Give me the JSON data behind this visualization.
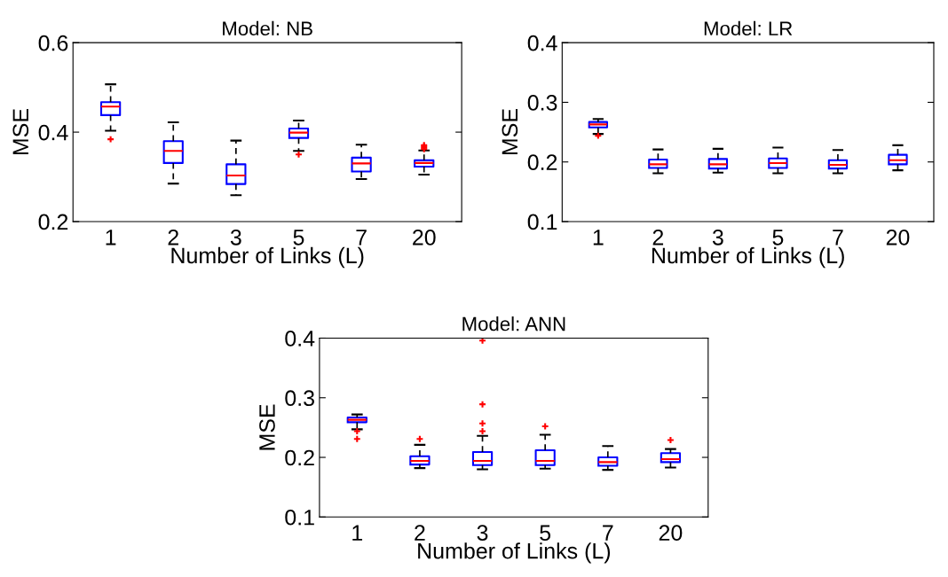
{
  "chart_data": [
    {
      "type": "box",
      "title": "Model: NB",
      "xlabel": "Number of Links (L)",
      "ylabel": "MSE",
      "categories": [
        "1",
        "2",
        "3",
        "5",
        "7",
        "20"
      ],
      "ylim": [
        0.2,
        0.6
      ],
      "yticks": [
        0.2,
        0.4,
        0.6
      ],
      "grid": false,
      "marker": "cross",
      "series": [
        {
          "color": "#0000ff",
          "boxes": [
            {
              "low": 0.403,
              "q1": 0.438,
              "median": 0.457,
              "q3": 0.467,
              "high": 0.507,
              "outliers": [
                0.384
              ]
            },
            {
              "low": 0.285,
              "q1": 0.331,
              "median": 0.358,
              "q3": 0.38,
              "high": 0.422
            },
            {
              "low": 0.259,
              "q1": 0.284,
              "median": 0.303,
              "q3": 0.328,
              "high": 0.381
            },
            {
              "low": 0.358,
              "q1": 0.387,
              "median": 0.399,
              "q3": 0.408,
              "high": 0.426,
              "outliers": [
                0.35
              ]
            },
            {
              "low": 0.295,
              "q1": 0.312,
              "median": 0.33,
              "q3": 0.343,
              "high": 0.372
            },
            {
              "low": 0.305,
              "q1": 0.323,
              "median": 0.331,
              "q3": 0.337,
              "high": 0.359,
              "outliers": [
                0.362,
                0.365,
                0.368,
                0.371
              ]
            }
          ]
        }
      ]
    },
    {
      "type": "box",
      "title": "Model: LR",
      "xlabel": "Number of Links (L)",
      "ylabel": "MSE",
      "categories": [
        "1",
        "2",
        "3",
        "5",
        "7",
        "20"
      ],
      "ylim": [
        0.1,
        0.4
      ],
      "yticks": [
        0.1,
        0.2,
        0.3,
        0.4
      ],
      "grid": false,
      "marker": "cross",
      "series": [
        {
          "color": "#0000ff",
          "boxes": [
            {
              "low": 0.247,
              "q1": 0.258,
              "median": 0.263,
              "q3": 0.267,
              "high": 0.272,
              "outliers": [
                0.244
              ]
            },
            {
              "low": 0.181,
              "q1": 0.19,
              "median": 0.196,
              "q3": 0.204,
              "high": 0.221
            },
            {
              "low": 0.182,
              "q1": 0.189,
              "median": 0.196,
              "q3": 0.205,
              "high": 0.222
            },
            {
              "low": 0.181,
              "q1": 0.19,
              "median": 0.198,
              "q3": 0.206,
              "high": 0.224
            },
            {
              "low": 0.181,
              "q1": 0.189,
              "median": 0.195,
              "q3": 0.203,
              "high": 0.22
            },
            {
              "low": 0.186,
              "q1": 0.196,
              "median": 0.203,
              "q3": 0.212,
              "high": 0.228
            }
          ]
        }
      ]
    },
    {
      "type": "box",
      "title": "Model: ANN",
      "xlabel": "Number of Links (L)",
      "ylabel": "MSE",
      "categories": [
        "1",
        "2",
        "3",
        "5",
        "7",
        "20"
      ],
      "ylim": [
        0.1,
        0.4
      ],
      "yticks": [
        0.1,
        0.2,
        0.3,
        0.4
      ],
      "grid": false,
      "marker": "cross",
      "series": [
        {
          "color": "#0000ff",
          "boxes": [
            {
              "low": 0.247,
              "q1": 0.259,
              "median": 0.263,
              "q3": 0.267,
              "high": 0.272,
              "outliers": [
                0.244,
                0.231
              ]
            },
            {
              "low": 0.182,
              "q1": 0.188,
              "median": 0.194,
              "q3": 0.202,
              "high": 0.221,
              "outliers": [
                0.231
              ]
            },
            {
              "low": 0.18,
              "q1": 0.187,
              "median": 0.194,
              "q3": 0.209,
              "high": 0.236,
              "outliers": [
                0.396,
                0.289,
                0.257,
                0.244
              ]
            },
            {
              "low": 0.181,
              "q1": 0.187,
              "median": 0.194,
              "q3": 0.212,
              "high": 0.238,
              "outliers": [
                0.252
              ]
            },
            {
              "low": 0.179,
              "q1": 0.186,
              "median": 0.192,
              "q3": 0.2,
              "high": 0.219
            },
            {
              "low": 0.183,
              "q1": 0.192,
              "median": 0.197,
              "q3": 0.207,
              "high": 0.214,
              "outliers": [
                0.229
              ]
            }
          ]
        }
      ]
    }
  ]
}
